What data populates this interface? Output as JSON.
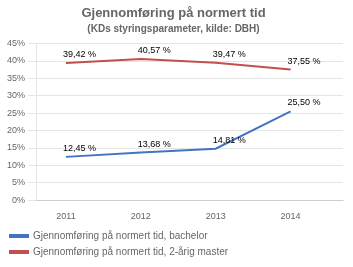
{
  "chart_data": {
    "type": "line",
    "title": "Gjennomføring på normert tid",
    "subtitle": "(KDs styringsparameter, kilde: DBH)",
    "x": [
      2011,
      2012,
      2013,
      2014
    ],
    "series": [
      {
        "name": "Gjennomføring på normert tid, bachelor",
        "color": "#4472C4",
        "values": [
          12.45,
          13.68,
          14.81,
          25.5
        ],
        "value_labels": [
          "12,45 %",
          "13,68 %",
          "14,81 %",
          "25,50 %"
        ]
      },
      {
        "name": "Gjennomføring på normert tid, 2-årig master",
        "color": "#C0504D",
        "values": [
          39.42,
          40.57,
          39.47,
          37.55
        ],
        "value_labels": [
          "39,42 %",
          "40,57 %",
          "39,47 %",
          "37,55 %"
        ]
      }
    ],
    "xlim": [
      2010.6,
      2014.7
    ],
    "xticks": [
      2011,
      2012,
      2013,
      2014
    ],
    "ylim": [
      0,
      45
    ],
    "yticks": [
      {
        "value": 0,
        "label": "0%"
      },
      {
        "value": 5,
        "label": "5%"
      },
      {
        "value": 10,
        "label": "10%"
      },
      {
        "value": 15,
        "label": "15%"
      },
      {
        "value": 20,
        "label": "20%"
      },
      {
        "value": 25,
        "label": "25%"
      },
      {
        "value": 30,
        "label": "30%"
      },
      {
        "value": 35,
        "label": "35%"
      },
      {
        "value": 40,
        "label": "40%"
      },
      {
        "value": 45,
        "label": "45%"
      }
    ],
    "grid": "y",
    "legend": "lower left",
    "data_labels": true,
    "marker": "none"
  }
}
